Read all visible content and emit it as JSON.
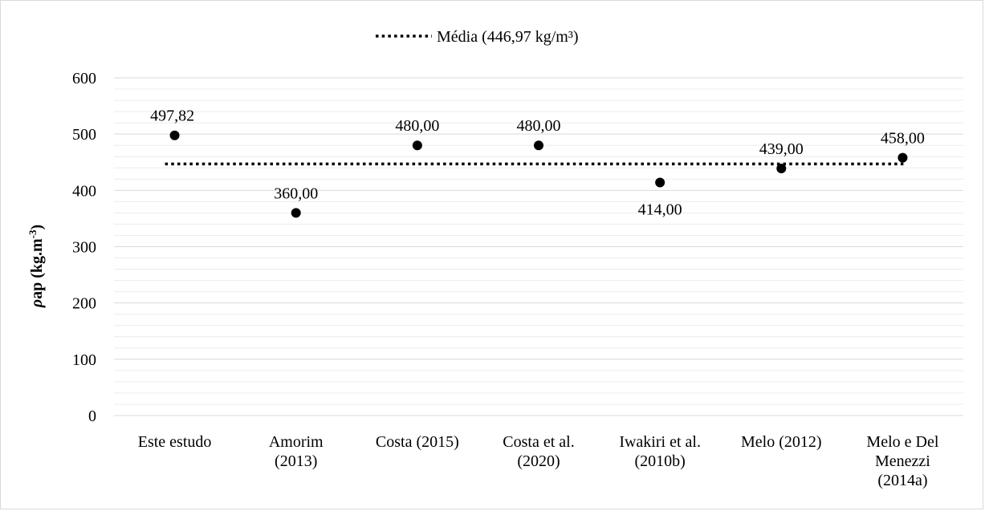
{
  "chart_data": {
    "type": "scatter",
    "categories": [
      [
        "Este estudo"
      ],
      [
        "Amorim",
        "(2013)"
      ],
      [
        "Costa (2015)"
      ],
      [
        "Costa et al.",
        "(2020)"
      ],
      [
        "Iwakiri et al.",
        "(2010b)"
      ],
      [
        "Melo (2012)"
      ],
      [
        "Melo e Del",
        "Menezzi",
        "(2014a)"
      ]
    ],
    "values": [
      497.82,
      360.0,
      480.0,
      480.0,
      414.0,
      439.0,
      458.0
    ],
    "data_labels": [
      "497,82",
      "360,00",
      "480,00",
      "480,00",
      "414,00",
      "439,00",
      "458,00"
    ],
    "label_position": [
      "above",
      "above",
      "above",
      "above",
      "below",
      "above",
      "above"
    ],
    "mean": 446.97,
    "legend": {
      "label": "Média (446,97 kg/m³)",
      "position": "top"
    },
    "ylabel": {
      "prefix": "ρ",
      "main": "ap (kg.m",
      "sup": "-3",
      "suffix": ")"
    },
    "ylim": [
      0,
      600
    ],
    "yticks": [
      0,
      100,
      200,
      300,
      400,
      500,
      600
    ],
    "gridlines": true,
    "colors": {
      "marker": "#000000",
      "grid": "#d9d9d9",
      "mean_line": "#000000"
    }
  }
}
